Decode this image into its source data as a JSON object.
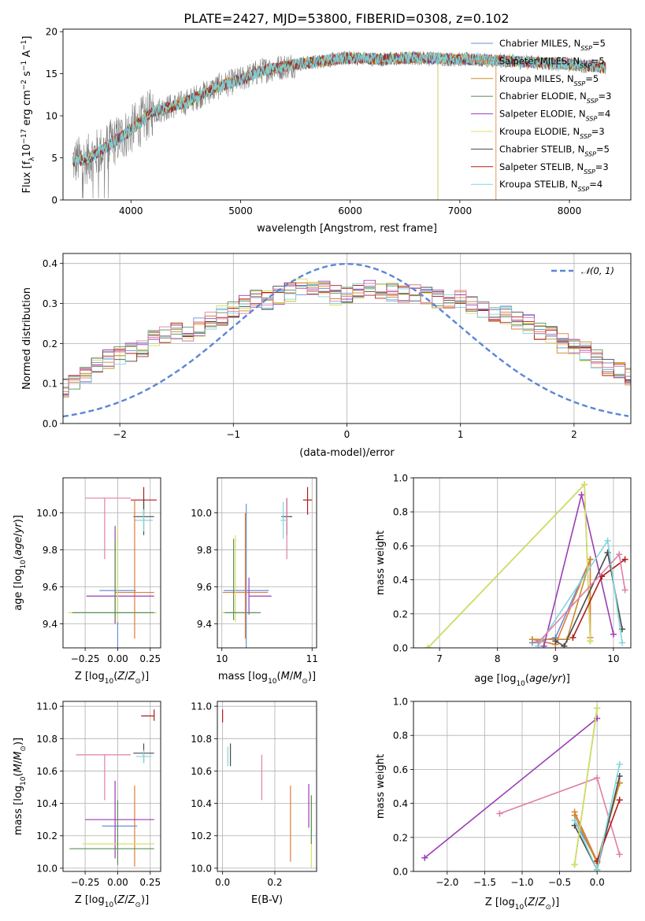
{
  "figure_title": "PLATE=2427, MJD=53800, FIBERID=0308, z=0.102",
  "colors": {
    "Chabrier MILES": "#6b8fd6",
    "Salpeter MILES": "#e07b39",
    "Kroupa MILES": "#c98b2a",
    "Chabrier ELODIE": "#5a8f5a",
    "Salpeter ELODIE": "#9b3db5",
    "Kroupa ELODIE": "#d8e060",
    "Chabrier STELIB": "#4a4a4a",
    "Salpeter STELIB": "#b01c1c",
    "Kroupa STELIB": "#7fd6dc",
    "data": "#808080",
    "gaussian": "#5b86d6",
    "pink": "#e07fa8",
    "lime": "#b8e04a"
  },
  "chart_data": [
    {
      "id": "spectrum",
      "type": "line",
      "xlabel": "wavelength [Angstrom, rest frame]",
      "ylabel": "Flux [f_λ10^-17 erg cm^-2 s^-1 A^-1]",
      "xlim": [
        3380,
        8560
      ],
      "ylim": [
        0,
        20.3
      ],
      "xticks": [
        4000,
        5000,
        6000,
        7000,
        8000
      ],
      "yticks": [
        0,
        5,
        10,
        15,
        20
      ],
      "grid": false,
      "legend_position": "upper right",
      "data_envelope": {
        "x": [
          3470,
          3600,
          3800,
          4000,
          4200,
          4500,
          4800,
          5000,
          5200,
          5500,
          5800,
          6000,
          6300,
          6600,
          7000,
          7300,
          7600,
          8000,
          8300
        ],
        "y": [
          4.6,
          4.8,
          6.5,
          8.3,
          10.5,
          11.6,
          13.5,
          14.3,
          15.4,
          16.1,
          16.6,
          16.9,
          16.7,
          16.9,
          16.7,
          16.6,
          16.4,
          16.1,
          15.8
        ]
      },
      "series": [
        {
          "name": "Chabrier MILES",
          "nssp": "5"
        },
        {
          "name": "Salpeter MILES",
          "nssp": "5"
        },
        {
          "name": "Kroupa MILES",
          "nssp": "5"
        },
        {
          "name": "Chabrier ELODIE",
          "nssp": "3"
        },
        {
          "name": "Salpeter ELODIE",
          "nssp": "4"
        },
        {
          "name": "Kroupa ELODIE",
          "nssp": "3"
        },
        {
          "name": "Chabrier STELIB",
          "nssp": "5"
        },
        {
          "name": "Salpeter STELIB",
          "nssp": "3"
        },
        {
          "name": "Kroupa STELIB",
          "nssp": "4"
        }
      ]
    },
    {
      "id": "residuals",
      "type": "line",
      "xlabel": "(data-model)/error",
      "ylabel": "Normed distribution",
      "xlim": [
        -2.5,
        2.5
      ],
      "ylim": [
        0,
        0.425
      ],
      "xticks": [
        -2,
        -1,
        0,
        1,
        2
      ],
      "yticks": [
        0.0,
        0.1,
        0.2,
        0.3,
        0.4
      ],
      "grid": true,
      "legend": "𝒩(0, 1)",
      "bin_width": 0.1,
      "histogram_profile": [
        0.04,
        0.05,
        0.05,
        0.05,
        0.06,
        0.07,
        0.08,
        0.1,
        0.1,
        0.09,
        0.11,
        0.12,
        0.14,
        0.16,
        0.17,
        0.18,
        0.19,
        0.21,
        0.22,
        0.23,
        0.22,
        0.24,
        0.26,
        0.27,
        0.29,
        0.3,
        0.31,
        0.31,
        0.32,
        0.33,
        0.34,
        0.33,
        0.34,
        0.32,
        0.32,
        0.33,
        0.34,
        0.33,
        0.33,
        0.32,
        0.33,
        0.32,
        0.31,
        0.31,
        0.31,
        0.3,
        0.29,
        0.28,
        0.27,
        0.26,
        0.25,
        0.23,
        0.22,
        0.2,
        0.19,
        0.18,
        0.16,
        0.14,
        0.13,
        0.12,
        0.1,
        0.09,
        0.08,
        0.07,
        0.06,
        0.06,
        0.05,
        0.05,
        0.04
      ]
    },
    {
      "id": "age-metallicity",
      "type": "scatter",
      "xlabel": "Z [log10(Z/Z⊙)]",
      "ylabel": "age  [log10(age/yr)]",
      "xlim": [
        -0.42,
        0.33
      ],
      "ylim": [
        9.27,
        10.19
      ],
      "xticks": [
        -0.25,
        0.0,
        0.25
      ],
      "yticks": [
        9.4,
        9.6,
        9.8,
        10.0
      ],
      "grid": true,
      "points": [
        {
          "series": "Salpeter STELIB",
          "x": 0.2,
          "y": 10.07,
          "xerr": [
            0.1,
            0.1
          ],
          "yerr": [
            0.08,
            0.07
          ]
        },
        {
          "series": "Chabrier STELIB",
          "x": 0.2,
          "y": 9.98,
          "xerr": [
            0.08,
            0.08
          ],
          "yerr": [
            0.1,
            0.1
          ]
        },
        {
          "series": "Kroupa STELIB",
          "x": 0.2,
          "y": 9.96,
          "xerr": [
            0.07,
            0.07
          ],
          "yerr": [
            0.06,
            0.06
          ]
        },
        {
          "series": "Chabrier MILES",
          "x": 0.0,
          "y": 9.58,
          "xerr": [
            0.14,
            0.14
          ],
          "yerr": [
            0.33,
            0.33
          ]
        },
        {
          "series": "Salpeter MILES",
          "x": 0.13,
          "y": 9.57,
          "xerr": [
            0.15,
            0.15
          ],
          "yerr": [
            0.25,
            0.5
          ]
        },
        {
          "series": "Salpeter ELODIE",
          "x": -0.02,
          "y": 9.55,
          "xerr": [
            0.22,
            0.3
          ],
          "yerr": [
            0.15,
            0.38
          ]
        },
        {
          "series": "Kroupa ELODIE",
          "x": 0.0,
          "y": 9.46,
          "xerr": [
            0.38,
            0.3
          ],
          "yerr": [
            0.05,
            0.47
          ]
        },
        {
          "series": "Chabrier ELODIE",
          "x": -0.02,
          "y": 9.46,
          "xerr": [
            0.33,
            0.3
          ],
          "yerr": [
            0.04,
            0.4
          ]
        },
        {
          "series": "pink",
          "x": -0.1,
          "y": 10.08,
          "xerr": [
            0.15,
            0.2
          ],
          "yerr": [
            0.33,
            0.0
          ]
        }
      ]
    },
    {
      "id": "age-mass",
      "type": "scatter",
      "xlabel": "mass [log10(M/M⊙)]",
      "xlim": [
        9.95,
        11.05
      ],
      "ylim": [
        9.27,
        10.19
      ],
      "xticks": [
        10,
        11
      ],
      "yticks": [
        9.4,
        9.6,
        9.8,
        10.0
      ],
      "grid": true,
      "points": [
        {
          "series": "Salpeter STELIB",
          "x": 10.95,
          "y": 10.07,
          "xerr": [
            0.05,
            0.05
          ],
          "yerr": [
            0.08,
            0.07
          ]
        },
        {
          "series": "Chabrier STELIB",
          "x": 10.72,
          "y": 9.98,
          "xerr": [
            0.06,
            0.06
          ],
          "yerr": [
            0.1,
            0.1
          ]
        },
        {
          "series": "Kroupa STELIB",
          "x": 10.68,
          "y": 9.96,
          "xerr": [
            0.03,
            0.03
          ],
          "yerr": [
            0.1,
            0.1
          ]
        },
        {
          "series": "Chabrier MILES",
          "x": 10.27,
          "y": 9.58,
          "xerr": [
            0.25,
            0.25
          ],
          "yerr": [
            0.33,
            0.47
          ]
        },
        {
          "series": "Salpeter MILES",
          "x": 10.26,
          "y": 9.57,
          "xerr": [
            0.25,
            0.25
          ],
          "yerr": [
            0.25,
            0.43
          ]
        },
        {
          "series": "Salpeter ELODIE",
          "x": 10.3,
          "y": 9.55,
          "xerr": [
            0.0,
            0.25
          ],
          "yerr": [
            0.1,
            0.1
          ]
        },
        {
          "series": "Kroupa ELODIE",
          "x": 10.15,
          "y": 9.46,
          "xerr": [
            0.15,
            0.12
          ],
          "yerr": [
            0.05,
            0.42
          ]
        },
        {
          "series": "Chabrier ELODIE",
          "x": 10.13,
          "y": 9.46,
          "xerr": [
            0.1,
            0.3
          ],
          "yerr": [
            0.04,
            0.4
          ]
        },
        {
          "series": "pink",
          "x": 10.72,
          "y": 10.08,
          "xerr": [
            0.0,
            0.0
          ],
          "yerr": [
            0.33,
            0.0
          ]
        }
      ]
    },
    {
      "id": "mass-weight-age",
      "type": "line",
      "xlabel": "age  [log10(age/yr)]",
      "ylabel": "mass weight",
      "xlim": [
        6.55,
        10.3
      ],
      "ylim": [
        0,
        1.0
      ],
      "xticks": [
        7,
        8,
        9,
        10
      ],
      "yticks": [
        0.0,
        0.2,
        0.4,
        0.6,
        0.8,
        1.0
      ],
      "grid": true,
      "series": [
        {
          "name": "Chabrier MILES",
          "x": [
            8.6,
            9.0,
            9.6
          ],
          "y": [
            0.03,
            0.06,
            0.52
          ]
        },
        {
          "name": "Salpeter MILES",
          "x": [
            8.6,
            9.0,
            9.6,
            9.6
          ],
          "y": [
            0.05,
            0.02,
            0.52,
            0.06
          ]
        },
        {
          "name": "Kroupa MILES",
          "x": [
            8.6,
            9.2,
            9.6
          ],
          "y": [
            0.05,
            0.05,
            0.52
          ]
        },
        {
          "name": "Chabrier ELODIE",
          "x": [
            6.8,
            9.5,
            9.6
          ],
          "y": [
            0.0,
            0.96,
            0.04
          ]
        },
        {
          "name": "Salpeter ELODIE",
          "x": [
            8.8,
            9.45,
            10.0
          ],
          "y": [
            0.01,
            0.9,
            0.08
          ]
        },
        {
          "name": "Kroupa ELODIE",
          "x": [
            6.8,
            9.5,
            9.6
          ],
          "y": [
            0.0,
            0.96,
            0.04
          ]
        },
        {
          "name": "Chabrier STELIB",
          "x": [
            9.0,
            9.15,
            9.9,
            10.15
          ],
          "y": [
            0.04,
            0.01,
            0.56,
            0.11
          ]
        },
        {
          "name": "Salpeter STELIB",
          "x": [
            9.3,
            9.8,
            10.2
          ],
          "y": [
            0.06,
            0.42,
            0.52
          ]
        },
        {
          "name": "Kroupa STELIB",
          "x": [
            8.7,
            9.9,
            10.15
          ],
          "y": [
            0.01,
            0.63,
            0.03
          ]
        },
        {
          "name": "pink",
          "x": [
            8.7,
            10.1,
            10.2
          ],
          "y": [
            0.03,
            0.55,
            0.34
          ]
        }
      ]
    },
    {
      "id": "mass-metallicity",
      "type": "scatter",
      "xlabel": "Z [log10(Z/Z⊙)]",
      "ylabel": "mass [log10(M/M⊙)]",
      "xlim": [
        -0.42,
        0.33
      ],
      "ylim": [
        9.98,
        11.03
      ],
      "xticks": [
        -0.25,
        0.0,
        0.25
      ],
      "yticks": [
        10.0,
        10.2,
        10.4,
        10.6,
        10.8,
        11.0
      ],
      "grid": true,
      "points": [
        {
          "series": "Salpeter STELIB",
          "x": 0.28,
          "y": 10.94,
          "xerr": [
            0.1,
            0.0
          ],
          "yerr": [
            0.03,
            0.04
          ]
        },
        {
          "series": "Chabrier STELIB",
          "x": 0.2,
          "y": 10.71,
          "xerr": [
            0.08,
            0.08
          ],
          "yerr": [
            0.06,
            0.06
          ]
        },
        {
          "series": "Kroupa STELIB",
          "x": 0.2,
          "y": 10.69,
          "xerr": [
            0.06,
            0.06
          ],
          "yerr": [
            0.04,
            0.04
          ]
        },
        {
          "series": "pink",
          "x": -0.1,
          "y": 10.7,
          "xerr": [
            0.22,
            0.2
          ],
          "yerr": [
            0.28,
            0.0
          ]
        },
        {
          "series": "Salpeter MILES",
          "x": 0.13,
          "y": 10.26,
          "xerr": [
            0.0,
            0.0
          ],
          "yerr": [
            0.25,
            0.25
          ]
        },
        {
          "series": "Chabrier MILES",
          "x": 0.03,
          "y": 10.26,
          "xerr": [
            0.15,
            0.12
          ],
          "yerr": [
            0.0,
            0.0
          ]
        },
        {
          "series": "Salpeter ELODIE",
          "x": -0.02,
          "y": 10.3,
          "xerr": [
            0.23,
            0.3
          ],
          "yerr": [
            0.24,
            0.24
          ]
        },
        {
          "series": "Kroupa ELODIE",
          "x": 0.0,
          "y": 10.15,
          "xerr": [
            0.27,
            0.28
          ],
          "yerr": [
            0.0,
            0.0
          ]
        },
        {
          "series": "Chabrier ELODIE",
          "x": 0.0,
          "y": 10.12,
          "xerr": [
            0.37,
            0.28
          ],
          "yerr": [
            0.1,
            0.3
          ]
        }
      ]
    },
    {
      "id": "mass-ebv",
      "type": "scatter",
      "xlabel": "E(B-V)",
      "xlim": [
        -0.02,
        0.36
      ],
      "ylim": [
        9.98,
        11.03
      ],
      "xticks": [
        0.0,
        0.2
      ],
      "yticks": [
        10.0,
        10.2,
        10.4,
        10.6,
        10.8,
        11.0
      ],
      "grid": true,
      "points": [
        {
          "series": "Salpeter STELIB",
          "x": 0.0,
          "y": 10.94,
          "yerr": [
            0.04,
            0.04
          ]
        },
        {
          "series": "Chabrier STELIB",
          "x": 0.03,
          "y": 10.71,
          "yerr": [
            0.08,
            0.06
          ]
        },
        {
          "series": "Kroupa STELIB",
          "x": 0.02,
          "y": 10.69,
          "yerr": [
            0.06,
            0.06
          ]
        },
        {
          "series": "pink",
          "x": 0.15,
          "y": 10.7,
          "yerr": [
            0.28,
            0.0
          ]
        },
        {
          "series": "Salpeter MILES",
          "x": 0.26,
          "y": 10.26,
          "yerr": [
            0.22,
            0.25
          ]
        },
        {
          "series": "Salpeter ELODIE",
          "x": 0.33,
          "y": 10.3,
          "yerr": [
            0.05,
            0.22
          ]
        },
        {
          "series": "Kroupa ELODIE",
          "x": 0.34,
          "y": 10.15,
          "yerr": [
            0.15,
            0.3
          ]
        },
        {
          "series": "Chabrier ELODIE",
          "x": 0.34,
          "y": 10.25,
          "yerr": [
            0.1,
            0.2
          ]
        }
      ]
    },
    {
      "id": "mass-weight-metallicity",
      "type": "line",
      "xlabel": "Z [log10(Z/Z⊙)]",
      "ylabel": "mass weight",
      "xlim": [
        -2.45,
        0.45
      ],
      "ylim": [
        0,
        1.0
      ],
      "xticks": [
        -2.0,
        -1.5,
        -1.0,
        -0.5,
        0.0
      ],
      "yticks": [
        0.0,
        0.2,
        0.4,
        0.6,
        0.8,
        1.0
      ],
      "grid": true,
      "series": [
        {
          "name": "Salpeter ELODIE",
          "x": [
            -2.3,
            0.0
          ],
          "y": [
            0.08,
            0.9
          ]
        },
        {
          "name": "pink",
          "x": [
            -1.3,
            0.0,
            0.3
          ],
          "y": [
            0.34,
            0.55,
            0.1
          ]
        },
        {
          "name": "Chabrier MILES",
          "x": [
            -0.3,
            0.0,
            0.3
          ],
          "y": [
            0.3,
            0.06,
            0.52
          ]
        },
        {
          "name": "Salpeter MILES",
          "x": [
            -0.3,
            0.0,
            0.3
          ],
          "y": [
            0.35,
            0.06,
            0.52
          ]
        },
        {
          "name": "Kroupa MILES",
          "x": [
            -0.3,
            0.0,
            0.3
          ],
          "y": [
            0.33,
            0.05,
            0.52
          ]
        },
        {
          "name": "Chabrier STELIB",
          "x": [
            -0.3,
            0.0,
            0.3
          ],
          "y": [
            0.27,
            0.01,
            0.56
          ]
        },
        {
          "name": "Salpeter STELIB",
          "x": [
            0.0,
            0.3
          ],
          "y": [
            0.06,
            0.42
          ]
        },
        {
          "name": "Kroupa STELIB",
          "x": [
            -0.3,
            0.0,
            0.3
          ],
          "y": [
            0.3,
            0.01,
            0.63
          ]
        },
        {
          "name": "Chabrier ELODIE",
          "x": [
            -0.3,
            0.0
          ],
          "y": [
            0.04,
            0.96
          ]
        },
        {
          "name": "Kroupa ELODIE",
          "x": [
            -0.3,
            0.0
          ],
          "y": [
            0.04,
            0.96
          ]
        }
      ]
    }
  ]
}
